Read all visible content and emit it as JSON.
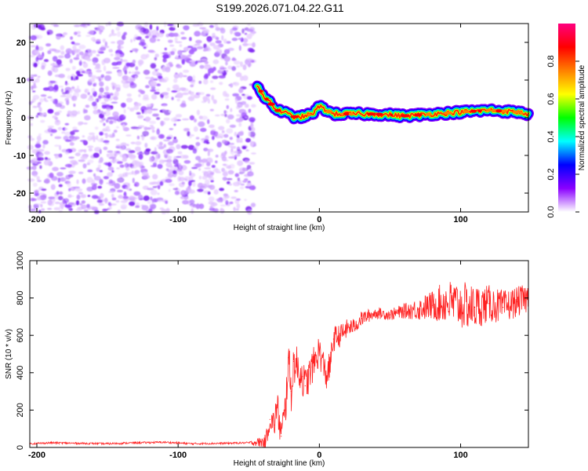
{
  "title": "S199.2026.071.04.22.G11",
  "chart_data": [
    {
      "type": "heatmap",
      "name": "spectrogram",
      "xlabel": "Height of straight line (km)",
      "ylabel": "Frequency (Hz)",
      "xlim": [
        -205,
        148
      ],
      "ylim": [
        -25,
        25
      ],
      "xticks": [
        -200,
        -100,
        0,
        100
      ],
      "yticks": [
        20,
        10,
        0,
        -10,
        -20
      ],
      "noise_region_x": [
        -205,
        -46
      ],
      "signal_ridge": {
        "x": [
          -44,
          -40,
          -35,
          -30,
          -25,
          -20,
          -15,
          -10,
          -5,
          0,
          5,
          10,
          20,
          40,
          60,
          80,
          100,
          120,
          140,
          148
        ],
        "y": [
          9,
          6,
          4,
          2,
          1.5,
          0.5,
          0,
          0.5,
          1,
          3,
          2,
          1,
          1,
          1,
          0.5,
          1,
          1.5,
          2,
          1.5,
          1
        ]
      },
      "colorbar": {
        "label": "Normalized spectral amplitude",
        "range": [
          0,
          1
        ],
        "ticks": [
          "0.0",
          "0.2",
          "0.4",
          "0.6",
          "0.8"
        ],
        "colors": [
          "#ffffff",
          "#8a00ff",
          "#0000ff",
          "#00ffff",
          "#00ff00",
          "#ffff00",
          "#ff8000",
          "#ff0000",
          "#ff007f"
        ]
      }
    },
    {
      "type": "line",
      "name": "snr",
      "xlabel": "Height of straight line (km)",
      "ylabel": "SNR (10 * v/v)",
      "xlim": [
        -205,
        148
      ],
      "ylim": [
        0,
        1000
      ],
      "xticks": [
        -200,
        -100,
        0,
        100
      ],
      "yticks": [
        0,
        200,
        400,
        600,
        800,
        1000
      ],
      "color": "#ff2020",
      "series": [
        {
          "name": "SNR",
          "x": [
            -205,
            -190,
            -170,
            -150,
            -130,
            -110,
            -90,
            -70,
            -50,
            -38,
            -35,
            -32,
            -30,
            -27,
            -24,
            -22,
            -20,
            -18,
            -15,
            -12,
            -10,
            -5,
            0,
            5,
            8,
            10,
            15,
            20,
            25,
            30,
            40,
            50,
            60,
            70,
            80,
            90,
            100,
            110,
            120,
            130,
            140,
            148
          ],
          "y": [
            20,
            25,
            22,
            20,
            25,
            28,
            20,
            22,
            25,
            30,
            150,
            120,
            230,
            60,
            200,
            480,
            300,
            460,
            420,
            380,
            330,
            430,
            520,
            380,
            450,
            580,
            600,
            640,
            650,
            690,
            720,
            710,
            730,
            740,
            760,
            780,
            760,
            750,
            770,
            750,
            780,
            800
          ],
          "noise": [
            5,
            5,
            5,
            5,
            5,
            5,
            5,
            5,
            5,
            40,
            60,
            80,
            90,
            100,
            110,
            120,
            120,
            110,
            110,
            100,
            100,
            90,
            90,
            80,
            80,
            70,
            60,
            50,
            40,
            40,
            30,
            30,
            40,
            60,
            80,
            120,
            130,
            120,
            100,
            90,
            80,
            80
          ]
        }
      ]
    }
  ]
}
